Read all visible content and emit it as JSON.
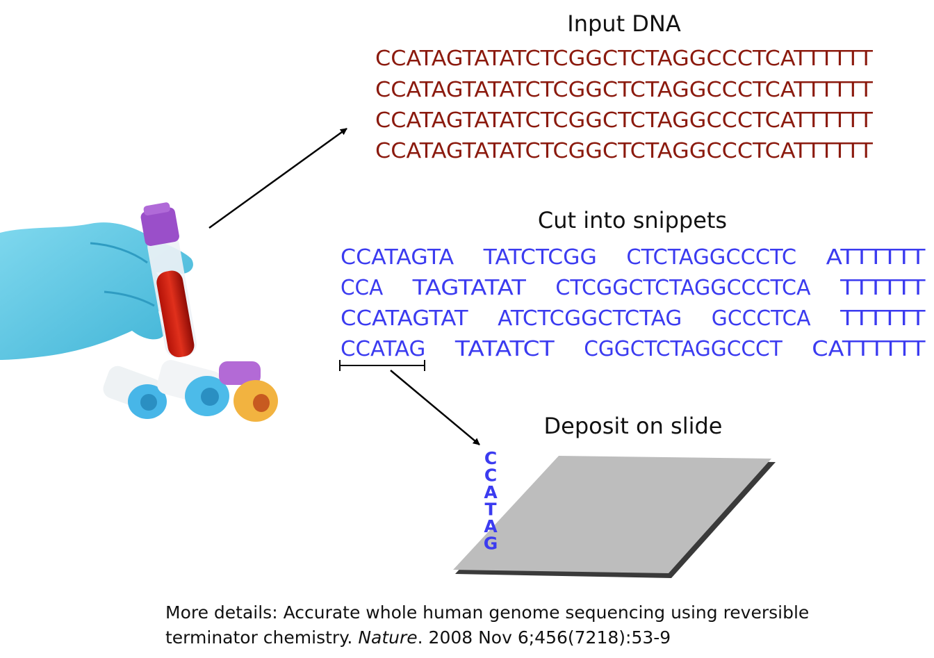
{
  "input": {
    "title": "Input DNA",
    "sequences": [
      "CCATAGTATATCTCGGCTCTAGGCCCTCATTTTTT",
      "CCATAGTATATCTCGGCTCTAGGCCCTCATTTTTT",
      "CCATAGTATATCTCGGCTCTAGGCCCTCATTTTTT",
      "CCATAGTATATCTCGGCTCTAGGCCCTCATTTTTT"
    ],
    "color": "#8b1a0e"
  },
  "snippets": {
    "title": "Cut into snippets",
    "color": "#3b3bf0",
    "rows": [
      [
        "CCATAGTA",
        "TATCTCGG",
        "CTCTAGGCCCTC",
        "ATTTTTT"
      ],
      [
        "CCA",
        "TAGTATAT",
        "CTCGGCTCTAGGCCCTCA",
        "TTTTTT"
      ],
      [
        "CCATAGTAT",
        "ATCTCGGCTCTAG",
        "GCCCTCA",
        "TTTTTT"
      ],
      [
        "CCATAG",
        "TATATCT",
        "CGGCTCTAGGCCCT",
        "CATTTTTT"
      ]
    ]
  },
  "deposit": {
    "title": "Deposit on slide",
    "strand": [
      "C",
      "C",
      "A",
      "T",
      "A",
      "G"
    ]
  },
  "reference": {
    "prefix": "More details: Accurate whole human genome sequencing using reversible terminator chemistry. ",
    "journal": "Nature",
    "suffix": ". 2008 Nov 6;456(7218):53-9"
  }
}
